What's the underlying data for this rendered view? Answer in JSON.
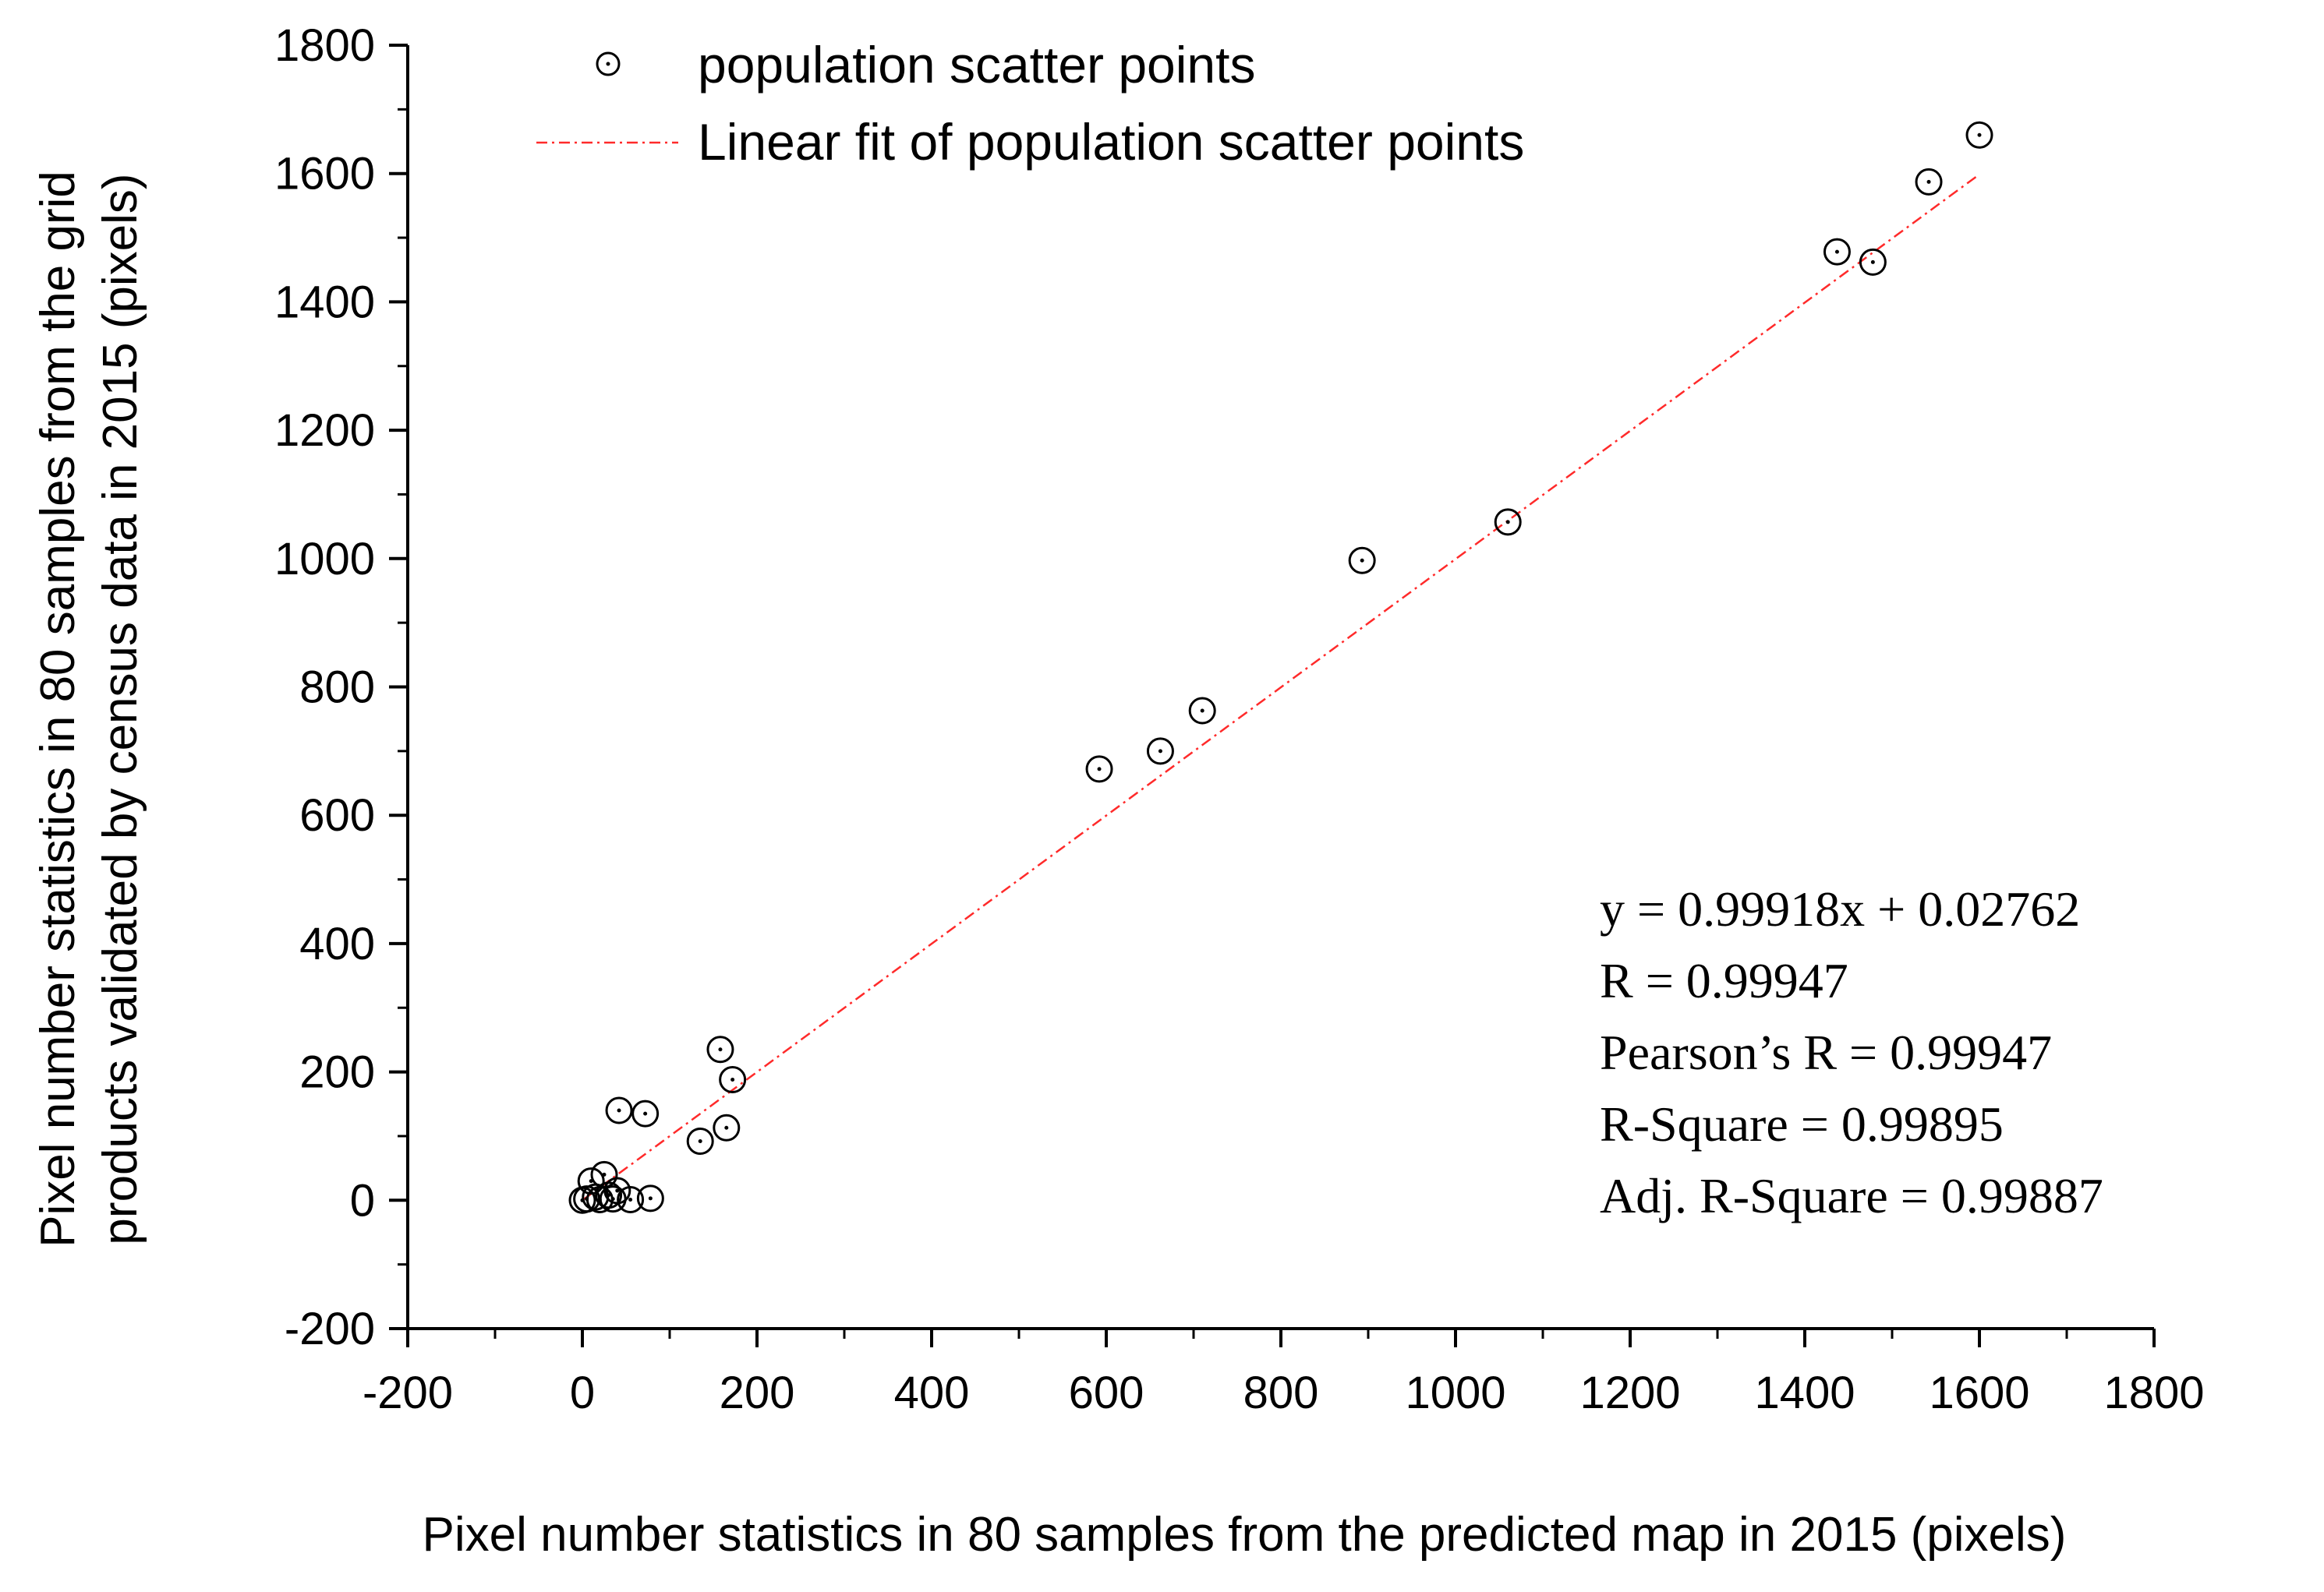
{
  "chart_data": {
    "type": "scatter",
    "xlabel": "Pixel number statistics in 80 samples from the predicted map in 2015 (pixels)",
    "ylabel_lines": [
      "Pixel number statistics in 80 samples from the grid",
      "products validated by census data in 2015 (pixels)"
    ],
    "xlim": [
      -200,
      1800
    ],
    "ylim": [
      -200,
      1800
    ],
    "x_ticks": [
      -200,
      0,
      200,
      400,
      600,
      800,
      1000,
      1200,
      1400,
      1600,
      1800
    ],
    "y_ticks": [
      -200,
      0,
      200,
      400,
      600,
      800,
      1000,
      1200,
      1400,
      1600,
      1800
    ],
    "x_tick_labels": [
      "-200",
      "0",
      "200",
      "400",
      "600",
      "800",
      "1000",
      "1200",
      "1400",
      "1600",
      "1800"
    ],
    "y_tick_labels": [
      "-200",
      "0",
      "200",
      "400",
      "600",
      "800",
      "1000",
      "1200",
      "1400",
      "1600",
      "1800"
    ],
    "grid": false,
    "legend_position": "top-left",
    "series": [
      {
        "name": "population scatter points",
        "marker": "circle-dot",
        "color": "#000000",
        "points": [
          {
            "x": 0,
            "y": 0
          },
          {
            "x": 5,
            "y": 2
          },
          {
            "x": 10,
            "y": 30
          },
          {
            "x": 15,
            "y": 5
          },
          {
            "x": 20,
            "y": 1
          },
          {
            "x": 25,
            "y": 40
          },
          {
            "x": 30,
            "y": 8
          },
          {
            "x": 35,
            "y": 2
          },
          {
            "x": 40,
            "y": 15
          },
          {
            "x": 42,
            "y": 140
          },
          {
            "x": 55,
            "y": 1
          },
          {
            "x": 72,
            "y": 135
          },
          {
            "x": 78,
            "y": 3
          },
          {
            "x": 135,
            "y": 92
          },
          {
            "x": 158,
            "y": 235
          },
          {
            "x": 165,
            "y": 113
          },
          {
            "x": 172,
            "y": 188
          },
          {
            "x": 592,
            "y": 672
          },
          {
            "x": 662,
            "y": 700
          },
          {
            "x": 710,
            "y": 763
          },
          {
            "x": 893,
            "y": 997
          },
          {
            "x": 1060,
            "y": 1057
          },
          {
            "x": 1437,
            "y": 1478
          },
          {
            "x": 1478,
            "y": 1462
          },
          {
            "x": 1542,
            "y": 1587
          },
          {
            "x": 1600,
            "y": 1660
          }
        ]
      },
      {
        "name": "Linear fit of population scatter points",
        "type": "line",
        "style": "dash-dot",
        "color": "#ff2a2a",
        "slope": 0.99918,
        "intercept": 0.02762,
        "x_range": [
          0,
          1600
        ]
      }
    ],
    "annotation_lines": [
      "y = 0.99918x + 0.02762",
      "R = 0.99947",
      "Pearson’s R = 0.99947",
      "R-Square = 0.99895",
      "Adj. R-Square = 0.99887"
    ]
  }
}
